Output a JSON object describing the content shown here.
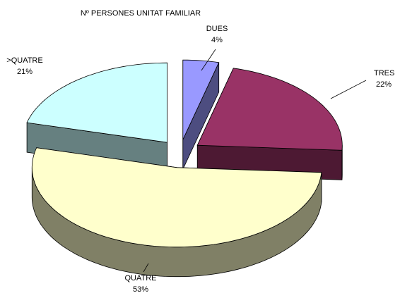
{
  "chart_data": {
    "type": "pie",
    "title": "Nº PERSONES UNITAT FAMILIAR",
    "categories": [
      "DUES",
      "TRES",
      "QUATRE",
      ">QUATRE"
    ],
    "values": [
      4,
      22,
      53,
      21
    ],
    "value_labels": [
      "4%",
      "22%",
      "53%",
      "21%"
    ],
    "colors": [
      "#9999ff",
      "#993366",
      "#ffffcc",
      "#ccffff"
    ],
    "side_colors": [
      "#4d4d80",
      "#4d1933",
      "#808066",
      "#668080"
    ]
  }
}
